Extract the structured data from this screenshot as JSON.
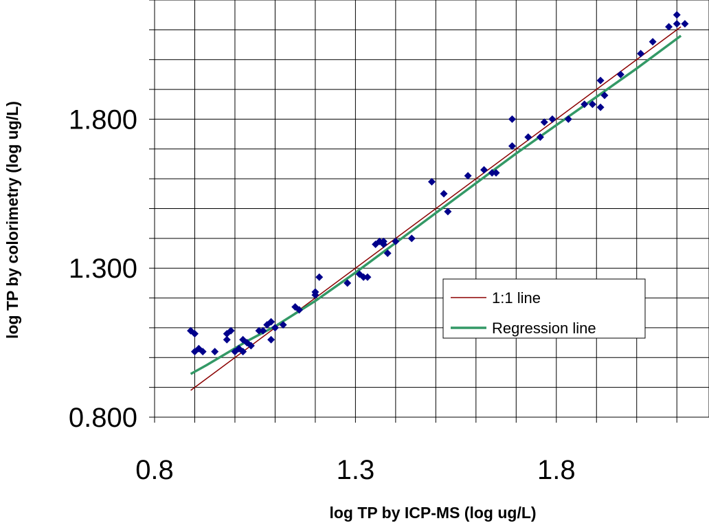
{
  "chart_data": {
    "type": "scatter",
    "title": "",
    "xlabel": "log TP by ICP-MS (log ug/L)",
    "ylabel": "log TP by colorimetry (log ug/L)",
    "xlim": [
      0.8,
      2.18
    ],
    "ylim": [
      0.8,
      2.2
    ],
    "x_ticks": [
      0.8,
      1.3,
      1.8
    ],
    "x_tick_labels": [
      "0.8",
      "1.3",
      "1.8"
    ],
    "y_ticks": [
      0.8,
      1.3,
      1.8
    ],
    "y_tick_labels": [
      "0.800",
      "1.300",
      "1.800"
    ],
    "grid": true,
    "legend_position": "inside-right",
    "series": [
      {
        "name": "",
        "kind": "points",
        "marker": "diamond",
        "color": "#00008B",
        "points": [
          [
            0.89,
            1.09
          ],
          [
            0.9,
            1.08
          ],
          [
            0.9,
            1.02
          ],
          [
            0.91,
            1.03
          ],
          [
            0.92,
            1.02
          ],
          [
            0.95,
            1.02
          ],
          [
            0.98,
            1.06
          ],
          [
            0.98,
            1.08
          ],
          [
            0.99,
            1.09
          ],
          [
            1.0,
            1.02
          ],
          [
            1.01,
            1.03
          ],
          [
            1.02,
            1.02
          ],
          [
            1.02,
            1.06
          ],
          [
            1.03,
            1.05
          ],
          [
            1.04,
            1.04
          ],
          [
            1.06,
            1.09
          ],
          [
            1.07,
            1.09
          ],
          [
            1.08,
            1.11
          ],
          [
            1.09,
            1.06
          ],
          [
            1.09,
            1.12
          ],
          [
            1.1,
            1.1
          ],
          [
            1.12,
            1.11
          ],
          [
            1.15,
            1.17
          ],
          [
            1.16,
            1.16
          ],
          [
            1.2,
            1.21
          ],
          [
            1.2,
            1.22
          ],
          [
            1.21,
            1.27
          ],
          [
            1.28,
            1.25
          ],
          [
            1.31,
            1.28
          ],
          [
            1.32,
            1.27
          ],
          [
            1.33,
            1.27
          ],
          [
            1.35,
            1.38
          ],
          [
            1.36,
            1.39
          ],
          [
            1.37,
            1.38
          ],
          [
            1.37,
            1.39
          ],
          [
            1.38,
            1.35
          ],
          [
            1.4,
            1.39
          ],
          [
            1.44,
            1.4
          ],
          [
            1.49,
            1.59
          ],
          [
            1.52,
            1.55
          ],
          [
            1.53,
            1.49
          ],
          [
            1.58,
            1.61
          ],
          [
            1.62,
            1.63
          ],
          [
            1.64,
            1.62
          ],
          [
            1.65,
            1.62
          ],
          [
            1.69,
            1.71
          ],
          [
            1.69,
            1.8
          ],
          [
            1.73,
            1.74
          ],
          [
            1.76,
            1.74
          ],
          [
            1.77,
            1.79
          ],
          [
            1.79,
            1.8
          ],
          [
            1.83,
            1.8
          ],
          [
            1.87,
            1.85
          ],
          [
            1.89,
            1.85
          ],
          [
            1.91,
            1.84
          ],
          [
            1.91,
            1.93
          ],
          [
            1.92,
            1.88
          ],
          [
            1.96,
            1.95
          ],
          [
            2.01,
            2.02
          ],
          [
            2.04,
            2.06
          ],
          [
            2.08,
            2.11
          ],
          [
            2.1,
            2.15
          ],
          [
            2.1,
            2.12
          ],
          [
            2.12,
            2.12
          ]
        ]
      },
      {
        "name": "1:1 line",
        "kind": "line",
        "color": "#8B0000",
        "points": [
          [
            0.89,
            0.89
          ],
          [
            2.11,
            2.11
          ]
        ]
      },
      {
        "name": "Regression line",
        "kind": "line",
        "color": "#339966",
        "points": [
          [
            0.89,
            0.945
          ],
          [
            0.93,
            0.975
          ],
          [
            0.98,
            1.015
          ],
          [
            1.03,
            1.055
          ],
          [
            1.1,
            1.105
          ],
          [
            1.2,
            1.19
          ],
          [
            1.3,
            1.285
          ],
          [
            1.4,
            1.385
          ],
          [
            1.5,
            1.485
          ],
          [
            1.6,
            1.585
          ],
          [
            1.7,
            1.685
          ],
          [
            1.8,
            1.78
          ],
          [
            1.9,
            1.875
          ],
          [
            2.0,
            1.97
          ],
          [
            2.1,
            2.07
          ],
          [
            2.11,
            2.08
          ]
        ]
      }
    ]
  }
}
